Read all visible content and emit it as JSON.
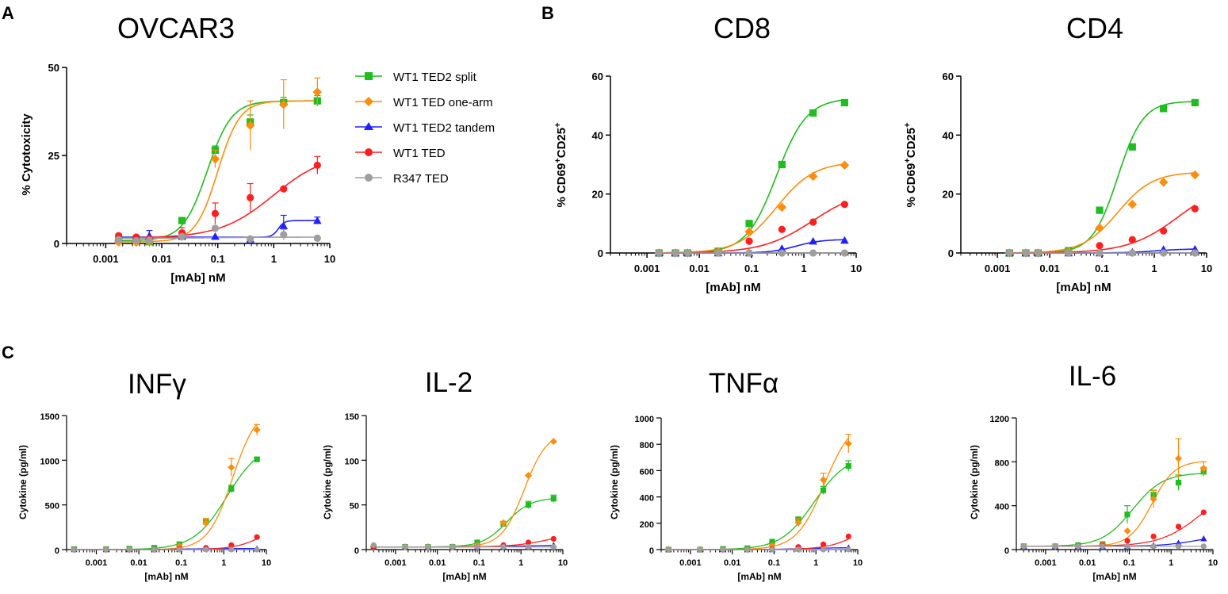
{
  "panels": {
    "a": "A",
    "b": "B",
    "c": "C"
  },
  "series_styles": [
    {
      "name": "WT1 TED2 split",
      "color": "#1fbd1f",
      "marker": "square"
    },
    {
      "name": "WT1 TED one-arm",
      "color": "#ff8c0a",
      "marker": "diamond"
    },
    {
      "name": "WT1 TED2 tandem",
      "color": "#1f1fff",
      "marker": "triangle"
    },
    {
      "name": "WT1 TED",
      "color": "#ff1f1f",
      "marker": "circle"
    },
    {
      "name": "R347 TED",
      "color": "#9e9e9e",
      "marker": "circle"
    }
  ],
  "chart_data": [
    {
      "id": "ovcar3",
      "type": "scatter",
      "title": "OVCAR3",
      "xlabel": "[mAb] nM",
      "ylabel": "% Cytotoxicity",
      "xscale": "log",
      "xlim": [
        0.0002,
        10
      ],
      "ylim": [
        0,
        50
      ],
      "xticks": [
        "0.001",
        "0.01",
        "0.1",
        "1",
        "10"
      ],
      "yticks": [
        "0",
        "25",
        "50"
      ],
      "x": [
        0.0035,
        0.0017,
        0.006,
        0.023,
        0.09,
        0.38,
        1.5,
        6.0
      ],
      "series": [
        {
          "name": "WT1 TED2 split",
          "values": [
            1.2,
            0.9,
            0.5,
            6.5,
            26.5,
            34.5,
            40,
            40.5
          ],
          "err": [
            0,
            0,
            0,
            0.8,
            1.2,
            2,
            1.5,
            1.5
          ],
          "fit": {
            "bottom": 0.8,
            "top": 40.5,
            "ec50": 0.065,
            "hill": 2.0
          }
        },
        {
          "name": "WT1 TED one-arm",
          "values": [
            0.3,
            0.4,
            0.6,
            2.0,
            24,
            33.5,
            39.5,
            43
          ],
          "err": [
            0,
            0,
            0,
            1.0,
            2.5,
            7,
            7,
            4
          ],
          "fit": {
            "bottom": 0.5,
            "top": 40.5,
            "ec50": 0.1,
            "hill": 2.2
          }
        },
        {
          "name": "WT1 TED2 tandem",
          "values": [
            1.5,
            1.7,
            2.2,
            2.0,
            2.0,
            1.2,
            5.0,
            6.5
          ],
          "err": [
            0,
            0,
            1.5,
            0,
            0,
            0,
            3,
            1
          ],
          "fit": {
            "bottom": 1.8,
            "top": 6.5,
            "ec50": 1.2,
            "hill": 8
          }
        },
        {
          "name": "WT1 TED",
          "values": [
            1.8,
            2.2,
            1.3,
            3.0,
            8.5,
            13,
            15.5,
            22.2
          ],
          "err": [
            0,
            0.5,
            0,
            1.5,
            3,
            4,
            0,
            2.5
          ],
          "fit": {
            "bottom": 1.5,
            "top": 26,
            "ec50": 1.0,
            "hill": 0.9
          }
        },
        {
          "name": "R347 TED",
          "values": [
            0.8,
            1.1,
            0.9,
            2.0,
            4.3,
            1.3,
            2.5,
            1.5
          ],
          "err": [
            0,
            0,
            0,
            0,
            0,
            0,
            1.5,
            0
          ],
          "fit": {
            "bottom": 1.5,
            "top": 1.8,
            "ec50": 0.1,
            "hill": 1
          }
        }
      ]
    },
    {
      "id": "cd8",
      "type": "scatter",
      "title": "CD8",
      "xlabel": "[mAb] nM",
      "ylabel": "% CD69+CD25+",
      "xscale": "log",
      "xlim": [
        0.0002,
        10
      ],
      "ylim": [
        0,
        60
      ],
      "xticks": [
        "0.001",
        "0.01",
        "0.1",
        "1",
        "10"
      ],
      "yticks": [
        "0",
        "20",
        "40",
        "60"
      ],
      "x": [
        0.0035,
        0.0017,
        0.006,
        0.023,
        0.09,
        0.38,
        1.5,
        6.0
      ],
      "series": [
        {
          "name": "WT1 TED2 split",
          "values": [
            0,
            0,
            0,
            0.6,
            10,
            30,
            47.5,
            51
          ],
          "fit": {
            "bottom": 0,
            "top": 52.5,
            "ec50": 0.3,
            "hill": 1.5
          }
        },
        {
          "name": "WT1 TED one-arm",
          "values": [
            0,
            0,
            0,
            0.5,
            7.2,
            15.5,
            26,
            29.8
          ],
          "fit": {
            "bottom": 0,
            "top": 31,
            "ec50": 0.3,
            "hill": 1.2
          }
        },
        {
          "name": "WT1 TED2 tandem",
          "values": [
            0,
            0,
            0,
            0,
            0,
            1.5,
            4,
            4.3
          ],
          "fit": {
            "bottom": 0,
            "top": 4.6,
            "ec50": 0.7,
            "hill": 1.8
          }
        },
        {
          "name": "WT1 TED",
          "values": [
            0,
            0,
            0,
            0,
            4,
            8,
            10.5,
            16.5
          ],
          "fit": {
            "bottom": 0,
            "top": 22,
            "ec50": 1.5,
            "hill": 0.9
          }
        },
        {
          "name": "R347 TED",
          "values": [
            0,
            0,
            0,
            0,
            0,
            0,
            0,
            0
          ],
          "fit": {
            "bottom": 0,
            "top": 0,
            "ec50": 1,
            "hill": 1
          }
        }
      ]
    },
    {
      "id": "cd4",
      "type": "scatter",
      "title": "CD4",
      "xlabel": "[mAb] nM",
      "ylabel": "% CD69+CD25+",
      "xscale": "log",
      "xlim": [
        0.0002,
        10
      ],
      "ylim": [
        0,
        60
      ],
      "xticks": [
        "0.001",
        "0.01",
        "0.1",
        "1",
        "10"
      ],
      "yticks": [
        "0",
        "20",
        "40",
        "60"
      ],
      "x": [
        0.0035,
        0.0017,
        0.006,
        0.023,
        0.09,
        0.38,
        1.5,
        6.0
      ],
      "series": [
        {
          "name": "WT1 TED2 split",
          "values": [
            0,
            0,
            0,
            0.8,
            14.5,
            36,
            49,
            51
          ],
          "fit": {
            "bottom": 0,
            "top": 51.5,
            "ec50": 0.2,
            "hill": 1.8
          }
        },
        {
          "name": "WT1 TED one-arm",
          "values": [
            0,
            0,
            0,
            0.5,
            8.5,
            16.5,
            24,
            26.5
          ],
          "fit": {
            "bottom": 0,
            "top": 27.5,
            "ec50": 0.2,
            "hill": 1.3
          }
        },
        {
          "name": "WT1 TED2 tandem",
          "values": [
            0,
            0,
            0,
            0,
            0,
            0.3,
            1.2,
            1.3
          ],
          "fit": {
            "bottom": 0,
            "top": 1.4,
            "ec50": 1.0,
            "hill": 1.5
          }
        },
        {
          "name": "WT1 TED",
          "values": [
            0,
            0,
            0,
            0,
            2.5,
            4.5,
            7.5,
            15
          ],
          "fit": {
            "bottom": 0,
            "top": 25,
            "ec50": 3,
            "hill": 0.9
          }
        },
        {
          "name": "R347 TED",
          "values": [
            0,
            0,
            0,
            0,
            0,
            0,
            0,
            0
          ],
          "fit": {
            "bottom": 0,
            "top": 0,
            "ec50": 1,
            "hill": 1
          }
        }
      ]
    },
    {
      "id": "infg",
      "type": "scatter",
      "title": "INFγ",
      "xlabel": "[mAb] nM",
      "ylabel": "Cytokine (pg/ml)",
      "xscale": "log",
      "xlim": [
        0.0002,
        10
      ],
      "ylim": [
        0,
        1500
      ],
      "xticks": [
        "0.001",
        "0.01",
        "0.1",
        "1",
        "10"
      ],
      "yticks": [
        "0",
        "500",
        "1000",
        "1500"
      ],
      "x": [
        0.0003,
        0.0017,
        0.006,
        0.023,
        0.09,
        0.38,
        1.5,
        6.0
      ],
      "series": [
        {
          "name": "WT1 TED2 split",
          "values": [
            5,
            5,
            10,
            20,
            60,
            310,
            680,
            1010
          ],
          "err": [
            0,
            0,
            0,
            0,
            0,
            20,
            40,
            20
          ],
          "fit": {
            "bottom": 0,
            "top": 1200,
            "ec50": 1.2,
            "hill": 1.1
          }
        },
        {
          "name": "WT1 TED one-arm",
          "values": [
            0,
            0,
            0,
            0,
            40,
            300,
            920,
            1340
          ],
          "err": [
            0,
            0,
            0,
            0,
            0,
            50,
            100,
            60
          ],
          "fit": {
            "bottom": 0,
            "top": 1600,
            "ec50": 1.6,
            "hill": 1.5
          }
        },
        {
          "name": "WT1 TED2 tandem",
          "values": [
            0,
            0,
            0,
            0,
            5,
            10,
            10,
            10
          ],
          "fit": {
            "bottom": 0,
            "top": 12,
            "ec50": 0.1,
            "hill": 1
          }
        },
        {
          "name": "WT1 TED",
          "values": [
            0,
            0,
            0,
            0,
            10,
            20,
            50,
            140
          ],
          "fit": {
            "bottom": 0,
            "top": 400,
            "ec50": 12,
            "hill": 1.2
          }
        },
        {
          "name": "R347 TED",
          "values": [
            0,
            0,
            0,
            0,
            0,
            0,
            0,
            0
          ],
          "fit": {
            "bottom": 0,
            "top": 0,
            "ec50": 1,
            "hill": 1
          }
        }
      ]
    },
    {
      "id": "il2",
      "type": "scatter",
      "title": "IL-2",
      "xlabel": "[mAb] nM",
      "ylabel": "Cytokine (pg/ml)",
      "xscale": "log",
      "xlim": [
        0.0002,
        10
      ],
      "ylim": [
        0,
        150
      ],
      "xticks": [
        "0.001",
        "0.01",
        "0.1",
        "1",
        "10"
      ],
      "yticks": [
        "0",
        "50",
        "100",
        "150"
      ],
      "x": [
        0.0003,
        0.0017,
        0.006,
        0.023,
        0.09,
        0.38,
        1.5,
        6.0
      ],
      "series": [
        {
          "name": "WT1 TED2 split",
          "values": [
            3,
            3,
            3,
            3,
            8,
            29,
            50,
            57
          ],
          "err": [
            0,
            0,
            0,
            0,
            0,
            2,
            4,
            4
          ],
          "fit": {
            "bottom": 3,
            "top": 58,
            "ec50": 0.45,
            "hill": 1.5
          }
        },
        {
          "name": "WT1 TED one-arm",
          "values": [
            3,
            3,
            3,
            3,
            5,
            30,
            83,
            121
          ],
          "err": [
            0,
            0,
            0,
            0,
            0,
            0,
            0,
            0
          ],
          "fit": {
            "bottom": 3,
            "top": 132,
            "ec50": 1.2,
            "hill": 1.6
          }
        },
        {
          "name": "WT1 TED2 tandem",
          "values": [
            3,
            3,
            3,
            3,
            3,
            3,
            4,
            5
          ],
          "fit": {
            "bottom": 3,
            "top": 5,
            "ec50": 1,
            "hill": 1
          }
        },
        {
          "name": "WT1 TED",
          "values": [
            3,
            3,
            3,
            3,
            3,
            5,
            8,
            12
          ],
          "fit": {
            "bottom": 3,
            "top": 20,
            "ec50": 5,
            "hill": 1
          }
        },
        {
          "name": "R347 TED",
          "values": [
            5,
            3,
            3,
            3,
            3,
            3,
            3,
            3
          ],
          "fit": {
            "bottom": 3,
            "top": 3,
            "ec50": 1,
            "hill": 1
          }
        }
      ]
    },
    {
      "id": "tnfa",
      "type": "scatter",
      "title": "TNFα",
      "xlabel": "[mAb] nM",
      "ylabel": "Cytokine (pg/ml)",
      "xscale": "log",
      "xlim": [
        0.0002,
        10
      ],
      "ylim": [
        0,
        1000
      ],
      "xticks": [
        "0.001",
        "0.01",
        "0.1",
        "1",
        "10"
      ],
      "yticks": [
        "0",
        "200",
        "400",
        "600",
        "800",
        "1000"
      ],
      "x": [
        0.0003,
        0.0017,
        0.006,
        0.023,
        0.09,
        0.38,
        1.5,
        6.0
      ],
      "series": [
        {
          "name": "WT1 TED2 split",
          "values": [
            0,
            0,
            5,
            10,
            60,
            230,
            450,
            635
          ],
          "err": [
            0,
            0,
            0,
            0,
            0,
            10,
            30,
            40
          ],
          "fit": {
            "bottom": 0,
            "top": 720,
            "ec50": 0.9,
            "hill": 1.1
          }
        },
        {
          "name": "WT1 TED one-arm",
          "values": [
            0,
            0,
            0,
            0,
            30,
            205,
            530,
            805
          ],
          "err": [
            0,
            0,
            0,
            0,
            0,
            30,
            50,
            70
          ],
          "fit": {
            "bottom": 0,
            "top": 1000,
            "ec50": 1.6,
            "hill": 1.3
          }
        },
        {
          "name": "WT1 TED2 tandem",
          "values": [
            0,
            0,
            0,
            0,
            0,
            5,
            10,
            15
          ],
          "fit": {
            "bottom": 0,
            "top": 15,
            "ec50": 0.5,
            "hill": 1
          }
        },
        {
          "name": "WT1 TED",
          "values": [
            0,
            0,
            0,
            0,
            5,
            20,
            40,
            100
          ],
          "fit": {
            "bottom": 0,
            "top": 300,
            "ec50": 15,
            "hill": 1.1
          }
        },
        {
          "name": "R347 TED",
          "values": [
            0,
            0,
            0,
            0,
            0,
            0,
            0,
            0
          ],
          "fit": {
            "bottom": 0,
            "top": 0,
            "ec50": 1,
            "hill": 1
          }
        }
      ]
    },
    {
      "id": "il6",
      "type": "scatter",
      "title": "IL-6",
      "xlabel": "[mAb] nM",
      "ylabel": "Cytokine (pg/ml)",
      "xscale": "log",
      "xlim": [
        0.0002,
        10
      ],
      "ylim": [
        0,
        1200
      ],
      "xticks": [
        "0.001",
        "0.01",
        "0.1",
        "1",
        "10"
      ],
      "yticks": [
        "0",
        "400",
        "800",
        "1200"
      ],
      "x": [
        0.0003,
        0.0017,
        0.006,
        0.023,
        0.09,
        0.38,
        1.5,
        6.0
      ],
      "series": [
        {
          "name": "WT1 TED2 split",
          "values": [
            30,
            30,
            40,
            50,
            320,
            500,
            610,
            710
          ],
          "err": [
            0,
            0,
            0,
            0,
            80,
            40,
            70,
            40
          ],
          "fit": {
            "bottom": 30,
            "top": 700,
            "ec50": 0.12,
            "hill": 1.2
          }
        },
        {
          "name": "WT1 TED one-arm",
          "values": [
            30,
            30,
            30,
            50,
            170,
            460,
            830,
            740
          ],
          "err": [
            0,
            0,
            0,
            0,
            0,
            80,
            180,
            60
          ],
          "fit": {
            "bottom": 30,
            "top": 810,
            "ec50": 0.35,
            "hill": 1.6
          }
        },
        {
          "name": "WT1 TED2 tandem",
          "values": [
            30,
            30,
            30,
            30,
            30,
            40,
            60,
            100
          ],
          "fit": {
            "bottom": 30,
            "top": 150,
            "ec50": 5,
            "hill": 1
          }
        },
        {
          "name": "WT1 TED",
          "values": [
            30,
            30,
            30,
            40,
            80,
            120,
            210,
            340
          ],
          "fit": {
            "bottom": 30,
            "top": 600,
            "ec50": 5,
            "hill": 0.9
          }
        },
        {
          "name": "R347 TED",
          "values": [
            30,
            30,
            30,
            30,
            30,
            30,
            30,
            30
          ],
          "fit": {
            "bottom": 30,
            "top": 30,
            "ec50": 1,
            "hill": 1
          }
        }
      ]
    }
  ]
}
